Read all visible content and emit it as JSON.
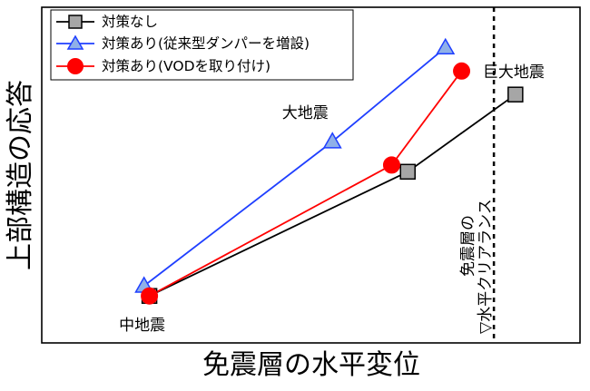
{
  "chart_data": {
    "type": "line",
    "title": "",
    "xlabel": "免震層の水平変位",
    "ylabel": "上部構造の応答",
    "xlim": [
      0,
      100
    ],
    "ylim": [
      0,
      100
    ],
    "grid": false,
    "legend_position": "top-left",
    "series": [
      {
        "name": "対策なし",
        "color": "#000000",
        "marker": "square",
        "marker_fill": "#a6a6a6",
        "points": [
          [
            20,
            14
          ],
          [
            68,
            51
          ],
          [
            88,
            74
          ]
        ]
      },
      {
        "name": "対策あり(従来型ダンパーを増設)",
        "color": "#1f3fff",
        "marker": "triangle",
        "marker_fill": "#8fb0e8",
        "points": [
          [
            19,
            17
          ],
          [
            54,
            60
          ],
          [
            75,
            88
          ]
        ]
      },
      {
        "name": "対策あり(VODを取り付け)",
        "color": "#ff0000",
        "marker": "circle",
        "marker_fill": "#ff0000",
        "points": [
          [
            20,
            14
          ],
          [
            65,
            53
          ],
          [
            78,
            81
          ]
        ]
      }
    ],
    "annotations": [
      {
        "text": "中地震",
        "x": 20,
        "y": 14
      },
      {
        "text": "大地震",
        "x": 54,
        "y": 60
      },
      {
        "text": "巨大地震",
        "x": 88,
        "y": 74
      }
    ],
    "reference_line": {
      "x": 84,
      "style": "dashed",
      "label_lines": [
        "免震層の",
        "▽水平クリアランス"
      ]
    }
  }
}
